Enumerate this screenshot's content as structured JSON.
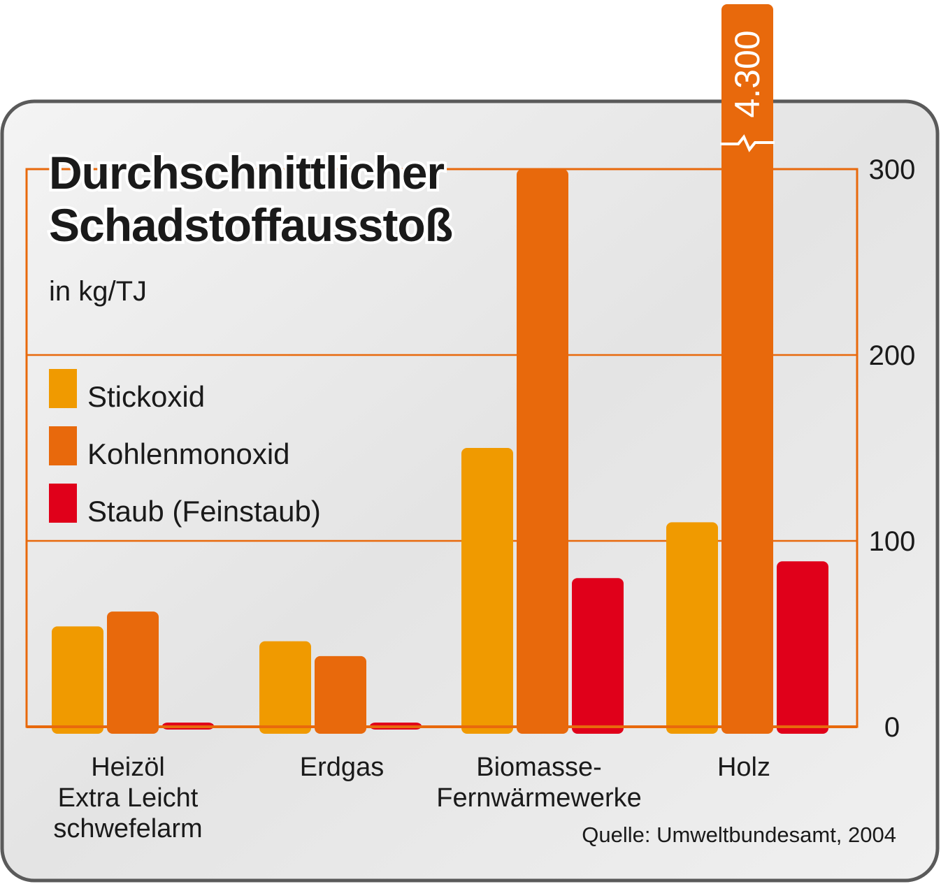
{
  "colors": {
    "stickoxid": "#f09a00",
    "kohlenmonoxid": "#e8690c",
    "staub": "#e0001a",
    "frame": "#e8690c",
    "panel": "#ebebeb",
    "panel_border": "#5a5a5a",
    "text": "#1a1a1a"
  },
  "chart_data": {
    "type": "bar",
    "title": [
      "Durchschnittlicher",
      "Schadstoffausstoß"
    ],
    "unit": "in kg/TJ",
    "source": "Quelle: Umweltbundesamt, 2004",
    "y_axis": {
      "position": "right",
      "ylim": [
        0,
        300
      ],
      "ticks": [
        "0",
        "100",
        "200",
        "300"
      ]
    },
    "categories": [
      [
        "Heizöl",
        "Extra Leicht",
        "schwefelarm"
      ],
      [
        "Erdgas"
      ],
      [
        "Biomasse-",
        "Fernwärmewerke"
      ],
      [
        "Holz"
      ]
    ],
    "series": [
      {
        "name": "Stickoxid",
        "color_key": "stickoxid",
        "values": [
          54,
          46,
          150,
          110
        ]
      },
      {
        "name": "Kohlenmonoxid",
        "color_key": "kohlenmonoxid",
        "values": [
          62,
          38,
          300,
          4300
        ]
      },
      {
        "name": "Staub (Feinstaub)",
        "color_key": "staub",
        "values": [
          2,
          2,
          80,
          89
        ]
      }
    ],
    "axis_break": {
      "series": "Kohlenmonoxid",
      "category": "Holz",
      "label": "4.300"
    }
  }
}
